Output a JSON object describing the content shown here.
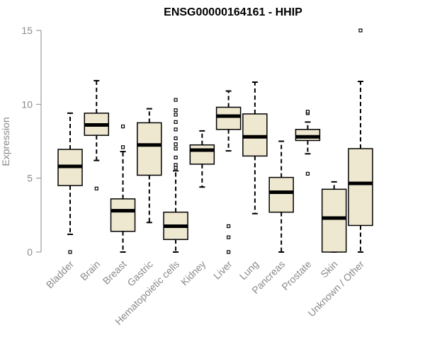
{
  "colors": {
    "box_fill": "#efe8d0",
    "stroke": "#000000",
    "axis": "#8a8a8a",
    "text_muted": "#8a8a8a"
  },
  "chart_data": {
    "type": "box",
    "title": "ENSG00000164161 - HHIP",
    "ylabel": "Expression",
    "xlabel": "",
    "ylim": [
      0,
      15
    ],
    "yticks": [
      0,
      5,
      10,
      15
    ],
    "grid": false,
    "categories": [
      "Bladder",
      "Brain",
      "Breast",
      "Gastric",
      "Hematopoietic cells",
      "Kidney",
      "Liver",
      "Lung",
      "Pancreas",
      "Prostate",
      "Skin",
      "Unknown / Other"
    ],
    "boxes": [
      {
        "category": "Bladder",
        "whisker_low": 1.2,
        "q1": 4.5,
        "median": 5.8,
        "q3": 6.95,
        "whisker_high": 9.4,
        "outliers": [
          0.0
        ]
      },
      {
        "category": "Brain",
        "whisker_low": 6.2,
        "q1": 7.9,
        "median": 8.6,
        "q3": 9.4,
        "whisker_high": 11.6,
        "outliers": [
          4.3
        ]
      },
      {
        "category": "Breast",
        "whisker_low": 0.0,
        "q1": 1.4,
        "median": 2.8,
        "q3": 3.6,
        "whisker_high": 6.8,
        "outliers": [
          7.1,
          8.5
        ]
      },
      {
        "category": "Gastric",
        "whisker_low": 2.0,
        "q1": 5.2,
        "median": 7.25,
        "q3": 8.75,
        "whisker_high": 9.7,
        "outliers": []
      },
      {
        "category": "Hematopoietic cells",
        "whisker_low": 0.0,
        "q1": 0.85,
        "median": 1.75,
        "q3": 2.7,
        "whisker_high": 5.5,
        "outliers": [
          5.7,
          5.9,
          6.4,
          7.0,
          7.3,
          7.7,
          8.3,
          8.8,
          9.3,
          9.6,
          10.3
        ]
      },
      {
        "category": "Kidney",
        "whisker_low": 4.4,
        "q1": 5.95,
        "median": 6.9,
        "q3": 7.25,
        "whisker_high": 8.2,
        "outliers": []
      },
      {
        "category": "Liver",
        "whisker_low": 6.85,
        "q1": 8.3,
        "median": 9.2,
        "q3": 9.8,
        "whisker_high": 10.9,
        "outliers": [
          0.0,
          1.0,
          1.75
        ]
      },
      {
        "category": "Lung",
        "whisker_low": 2.6,
        "q1": 6.5,
        "median": 7.8,
        "q3": 9.35,
        "whisker_high": 11.5,
        "outliers": []
      },
      {
        "category": "Pancreas",
        "whisker_low": 0.0,
        "q1": 2.7,
        "median": 4.05,
        "q3": 5.05,
        "whisker_high": 7.5,
        "outliers": []
      },
      {
        "category": "Prostate",
        "whisker_low": 6.65,
        "q1": 7.55,
        "median": 7.8,
        "q3": 8.3,
        "whisker_high": 8.8,
        "outliers": [
          5.3,
          9.4,
          9.5
        ]
      },
      {
        "category": "Skin",
        "whisker_low": 0.0,
        "q1": 0.0,
        "median": 2.3,
        "q3": 4.25,
        "whisker_high": 4.75,
        "outliers": []
      },
      {
        "category": "Unknown / Other",
        "whisker_low": 0.0,
        "q1": 1.8,
        "median": 4.65,
        "q3": 7.0,
        "whisker_high": 11.55,
        "outliers": [
          15.0
        ]
      }
    ]
  }
}
